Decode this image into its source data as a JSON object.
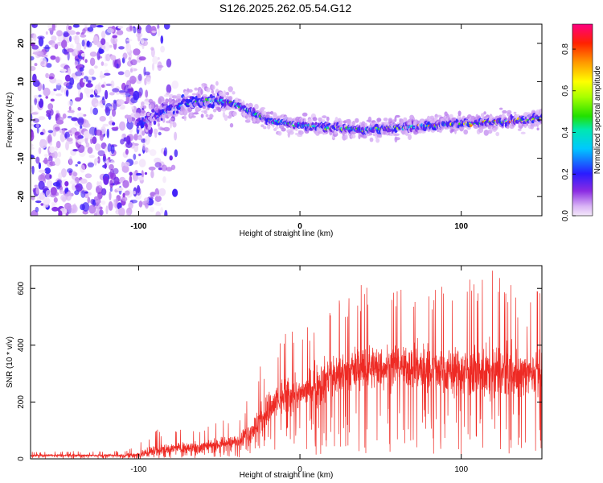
{
  "figure_title": "S126.2025.262.05.54.G12",
  "chart_data": [
    {
      "type": "heatmap",
      "title": "",
      "xlabel": "Height of straight line (km)",
      "ylabel": "Frequency (Hz)",
      "xlim": [
        -167,
        150
      ],
      "ylim": [
        -25,
        25
      ],
      "x_ticks": [
        "-100",
        "0",
        "100"
      ],
      "y_ticks": [
        "20",
        "10",
        "0",
        "-10",
        "-20"
      ],
      "colorbar": {
        "label": "Normalized spectral amplitude",
        "ticks": [
          "0.0",
          "0.2",
          "0.4",
          "0.6",
          "0.8"
        ],
        "range": [
          0,
          0.92
        ]
      },
      "ridge": {
        "x": [
          -100,
          -90,
          -80,
          -70,
          -60,
          -50,
          -40,
          -30,
          -20,
          0,
          20,
          40,
          60,
          80,
          100,
          120,
          140,
          150
        ],
        "frequency": [
          -1,
          1,
          3,
          4,
          5,
          5,
          4,
          2,
          0,
          -1.5,
          -2,
          -2.5,
          -2,
          -1.5,
          -1,
          -0.5,
          0,
          0.5
        ],
        "amplitude": [
          0.25,
          0.3,
          0.35,
          0.45,
          0.55,
          0.6,
          0.5,
          0.55,
          0.6,
          0.65,
          0.65,
          0.6,
          0.7,
          0.75,
          0.8,
          0.85,
          0.85,
          0.8
        ]
      },
      "noise_region": {
        "x": [
          -167,
          -100
        ],
        "frequency": [
          -25,
          25
        ],
        "amplitude": 0.25
      }
    },
    {
      "type": "line",
      "title": "",
      "xlabel": "Height of straight line (km)",
      "ylabel": "SNR (10 * v/v)",
      "xlim": [
        -167,
        150
      ],
      "ylim": [
        0,
        680
      ],
      "x_ticks": [
        "-100",
        "0",
        "100"
      ],
      "y_ticks": [
        "0",
        "200",
        "400",
        "600"
      ],
      "color": "#ee2a24",
      "envelope": {
        "x": [
          -167,
          -110,
          -100,
          -90,
          -80,
          -60,
          -40,
          -30,
          -20,
          -10,
          0,
          10,
          20,
          30,
          40,
          60,
          80,
          100,
          120,
          140,
          150
        ],
        "mean": [
          12,
          12,
          15,
          28,
          35,
          45,
          60,
          100,
          170,
          220,
          230,
          260,
          290,
          310,
          320,
          330,
          320,
          310,
          300,
          300,
          320
        ],
        "max": [
          25,
          30,
          55,
          110,
          100,
          120,
          145,
          240,
          400,
          480,
          420,
          560,
          560,
          600,
          620,
          610,
          650,
          630,
          680,
          560,
          680
        ]
      }
    }
  ]
}
